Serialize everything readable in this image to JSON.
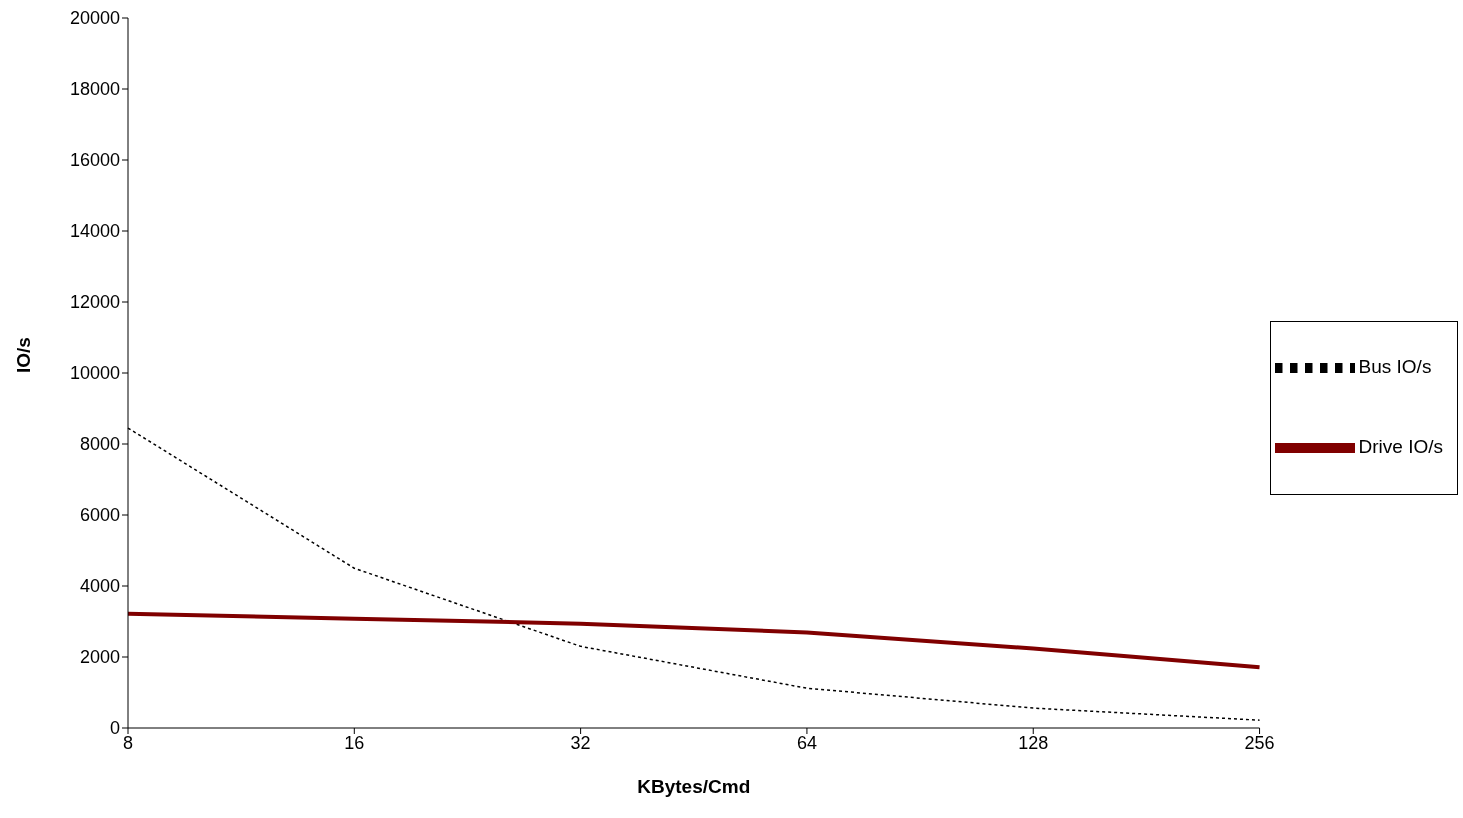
{
  "chart_data": {
    "type": "line",
    "xlabel": "KBytes/Cmd",
    "ylabel": "IO/s",
    "categories": [
      "8",
      "16",
      "32",
      "64",
      "128",
      "256"
    ],
    "series": [
      {
        "name": "Bus IO/s",
        "color": "#000000",
        "line_style": "dotted",
        "values": [
          8450,
          4500,
          2300,
          1120,
          560,
          220
        ]
      },
      {
        "name": "Drive IO/s",
        "color": "#800000",
        "line_style": "solid",
        "values": [
          3220,
          3080,
          2940,
          2690,
          2240,
          1710
        ]
      }
    ],
    "ylim": [
      0,
      20000
    ],
    "yticks": [
      0,
      2000,
      4000,
      6000,
      8000,
      10000,
      12000,
      14000,
      16000,
      18000,
      20000
    ],
    "grid": false,
    "legend": "right",
    "marker": "none"
  }
}
